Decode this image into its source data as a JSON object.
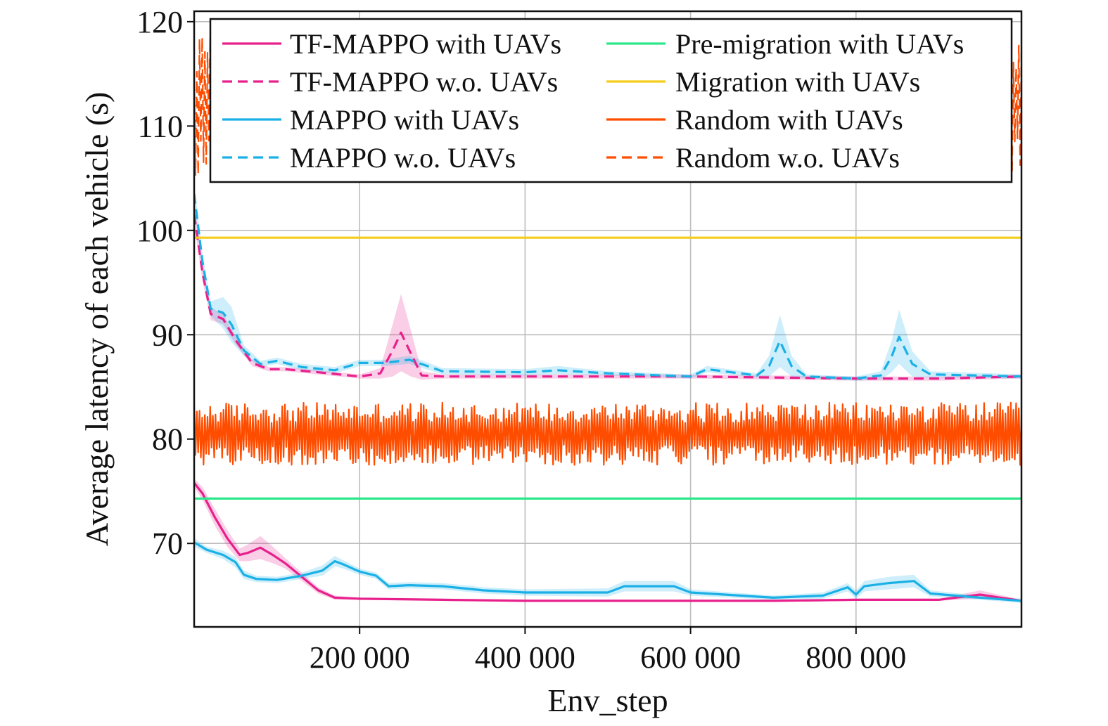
{
  "chart_data": {
    "type": "line",
    "xlabel": "Env_step",
    "ylabel": "Average latency of each vehicle (s)",
    "xlim": [
      0,
      1000000
    ],
    "ylim": [
      62,
      121
    ],
    "x_ticks": [
      200000,
      400000,
      600000,
      800000
    ],
    "x_tick_labels": [
      "200 000",
      "400 000",
      "600 000",
      "800 000"
    ],
    "y_ticks": [
      70,
      80,
      90,
      100,
      110,
      120
    ],
    "y_tick_labels": [
      "70",
      "80",
      "90",
      "100",
      "110",
      "120"
    ],
    "grid": true,
    "legend_position": "top",
    "series": [
      {
        "name": "TF-MAPPO with UAVs",
        "color": "#e8208c",
        "dash": "solid",
        "x": [
          0,
          10000,
          25000,
          40000,
          55000,
          65000,
          80000,
          95000,
          110000,
          130000,
          150000,
          170000,
          200000,
          300000,
          400000,
          500000,
          600000,
          700000,
          800000,
          900000,
          950000,
          1000000
        ],
        "y": [
          75.8,
          74.8,
          72.5,
          70.5,
          68.9,
          69.1,
          69.6,
          68.9,
          68.1,
          66.8,
          65.5,
          64.8,
          64.7,
          64.6,
          64.5,
          64.5,
          64.5,
          64.5,
          64.6,
          64.6,
          65.1,
          64.5
        ],
        "band": [
          0.4,
          0.6,
          0.8,
          0.8,
          0.6,
          0.8,
          1.1,
          0.8,
          0.5,
          0.4,
          0.3,
          0.2,
          0.1,
          0.1,
          0.1,
          0.1,
          0.1,
          0.1,
          0.1,
          0.1,
          0.4,
          0.1
        ]
      },
      {
        "name": "TF-MAPPO w.o. UAVs",
        "color": "#e8208c",
        "dash": "dashed",
        "x": [
          0,
          10000,
          20000,
          35000,
          50000,
          70000,
          90000,
          110000,
          150000,
          200000,
          225000,
          240000,
          250000,
          262000,
          275000,
          300000,
          400000,
          500000,
          600000,
          700000,
          800000,
          900000,
          1000000
        ],
        "y": [
          101.5,
          96.0,
          92.0,
          91.5,
          89.5,
          87.3,
          86.7,
          86.7,
          86.4,
          86.0,
          86.3,
          88.5,
          90.2,
          88.2,
          86.1,
          86.0,
          86.0,
          86.0,
          86.0,
          85.9,
          85.8,
          85.8,
          86.0
        ],
        "band": [
          1.0,
          0.8,
          0.6,
          0.5,
          0.4,
          0.3,
          0.2,
          0.2,
          0.2,
          0.2,
          0.5,
          2.5,
          3.7,
          2.2,
          0.4,
          0.2,
          0.2,
          0.2,
          0.2,
          0.2,
          0.2,
          0.2,
          0.2
        ]
      },
      {
        "name": "MAPPO with UAVs",
        "color": "#1ab0e6",
        "dash": "solid",
        "x": [
          0,
          15000,
          35000,
          50000,
          60000,
          75000,
          100000,
          130000,
          155000,
          170000,
          180000,
          200000,
          220000,
          235000,
          260000,
          300000,
          350000,
          400000,
          500000,
          520000,
          580000,
          600000,
          700000,
          760000,
          790000,
          800000,
          810000,
          840000,
          870000,
          890000,
          950000,
          1000000
        ],
        "y": [
          70.1,
          69.4,
          68.9,
          68.2,
          67.0,
          66.6,
          66.5,
          66.9,
          67.4,
          68.3,
          68.0,
          67.3,
          66.9,
          65.9,
          66.0,
          65.9,
          65.5,
          65.3,
          65.3,
          65.9,
          65.9,
          65.3,
          64.8,
          65.0,
          65.8,
          65.1,
          65.9,
          66.2,
          66.4,
          65.2,
          64.8,
          64.5
        ],
        "band": [
          0.4,
          0.3,
          0.4,
          0.5,
          0.4,
          0.3,
          0.3,
          0.3,
          0.5,
          0.5,
          0.4,
          0.3,
          0.3,
          0.3,
          0.3,
          0.3,
          0.3,
          0.3,
          0.4,
          0.5,
          0.5,
          0.3,
          0.2,
          0.3,
          0.4,
          0.4,
          0.5,
          0.6,
          0.6,
          0.3,
          0.2,
          0.2
        ]
      },
      {
        "name": "MAPPO w.o. UAVs",
        "color": "#1ab0e6",
        "dash": "dashed",
        "x": [
          0,
          10000,
          20000,
          35000,
          45000,
          60000,
          80000,
          100000,
          130000,
          170000,
          200000,
          230000,
          260000,
          300000,
          400000,
          440000,
          500000,
          600000,
          620000,
          680000,
          695000,
          708000,
          722000,
          740000,
          800000,
          830000,
          843000,
          852000,
          868000,
          890000,
          1000000
        ],
        "y": [
          103.5,
          97.0,
          92.5,
          92.1,
          91.0,
          88.5,
          87.2,
          87.5,
          86.9,
          86.6,
          87.3,
          87.3,
          87.6,
          86.5,
          86.4,
          86.6,
          86.3,
          86.0,
          86.7,
          86.1,
          87.0,
          89.4,
          87.0,
          86.0,
          85.8,
          86.1,
          87.9,
          89.8,
          87.2,
          86.2,
          86.0
        ],
        "band": [
          1.0,
          0.8,
          0.7,
          1.5,
          1.7,
          0.5,
          0.3,
          0.3,
          0.3,
          0.3,
          0.3,
          0.3,
          0.4,
          0.3,
          0.3,
          0.4,
          0.2,
          0.2,
          0.3,
          0.2,
          1.0,
          2.5,
          1.0,
          0.2,
          0.2,
          0.4,
          1.5,
          2.6,
          1.2,
          0.3,
          0.2
        ]
      },
      {
        "name": "Pre-migration with UAVs",
        "color": "#2de88a",
        "dash": "solid",
        "x": [
          0,
          1000000
        ],
        "y": [
          74.3,
          74.3
        ]
      },
      {
        "name": "Migration with UAVs",
        "color": "#f4cc1a",
        "dash": "solid",
        "x": [
          0,
          1000000
        ],
        "y": [
          99.3,
          99.3
        ]
      },
      {
        "name": "Random with UAVs",
        "color": "#ff4d00",
        "dash": "solid",
        "noise": true,
        "mean": 80.5,
        "range": [
          77.5,
          83.5
        ],
        "x": [
          0,
          1000000
        ],
        "y": [
          80.5,
          80.5
        ]
      },
      {
        "name": "Random w.o. UAVs",
        "color": "#ff4d00",
        "dash": "dashed",
        "noise": true,
        "mean": 112,
        "range": [
          104.5,
          118.5
        ],
        "x": [
          0,
          1000000
        ],
        "y": [
          112,
          112
        ]
      }
    ]
  }
}
